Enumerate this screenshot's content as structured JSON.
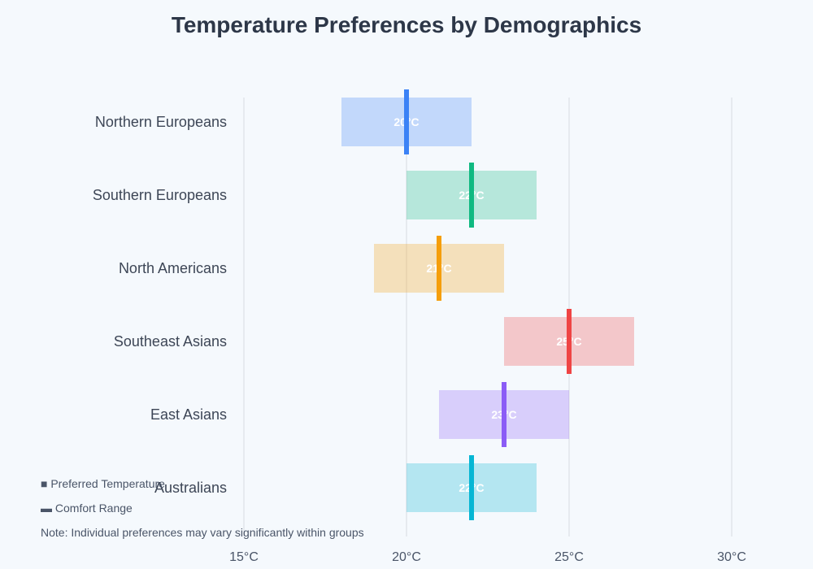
{
  "chart_data": {
    "type": "bar",
    "title": "Temperature Preferences by Demographics",
    "xlabel": "",
    "ylabel": "",
    "xlim": [
      15,
      30
    ],
    "x_ticks": [
      15,
      20,
      25,
      30
    ],
    "x_tick_labels": [
      "15°C",
      "20°C",
      "25°C",
      "30°C"
    ],
    "grid": true,
    "categories": [
      "Northern Europeans",
      "Southern Europeans",
      "North Americans",
      "Southeast Asians",
      "East Asians",
      "Australians"
    ],
    "series": [
      {
        "name": "Preferred Temperature",
        "values": [
          20,
          22,
          21,
          25,
          23,
          22
        ]
      },
      {
        "name": "Comfort Range",
        "ranges": [
          [
            18,
            22
          ],
          [
            20,
            24
          ],
          [
            19,
            23
          ],
          [
            23,
            27
          ],
          [
            21,
            25
          ],
          [
            20,
            24
          ]
        ]
      }
    ],
    "value_labels": [
      "20°C",
      "22°C",
      "21°C",
      "25°C",
      "23°C",
      "22°C"
    ],
    "colors": [
      "#3b82f6",
      "#10b981",
      "#f59e0b",
      "#ef4444",
      "#8b5cf6",
      "#06b6d4"
    ],
    "legend": {
      "placement": "bottom-left",
      "items": [
        "■ Preferred Temperature",
        "▬ Comfort Range"
      ]
    },
    "note": "Note: Individual preferences may vary significantly within groups"
  }
}
